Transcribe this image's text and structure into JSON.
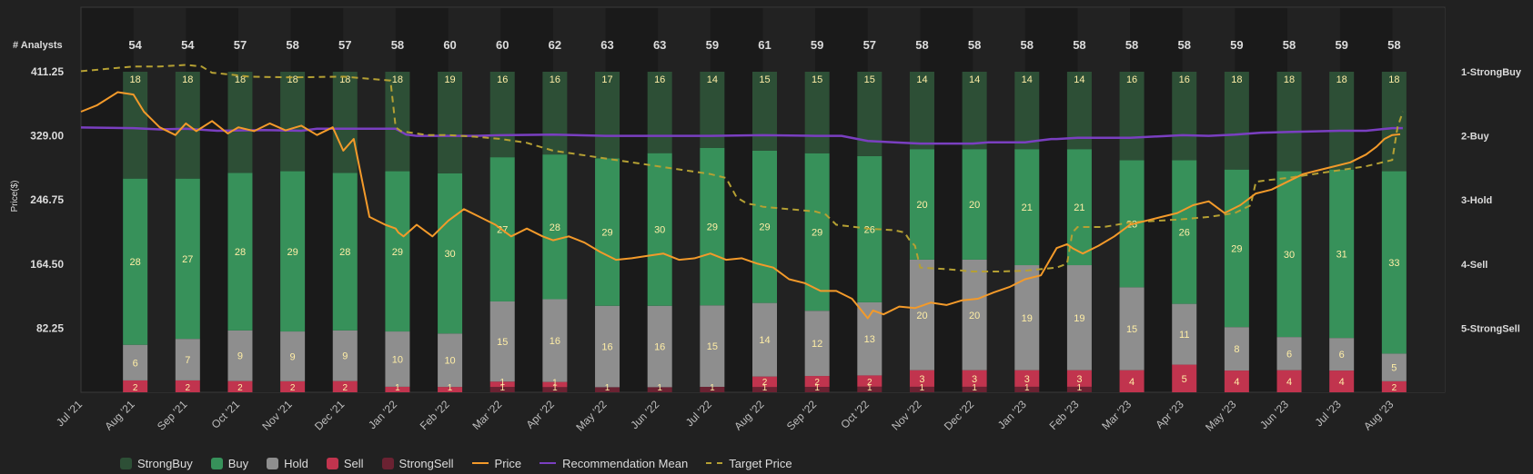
{
  "chart_data": {
    "type": "bar",
    "analysts_label": "# Analysts",
    "price_axis_label": "Price($)",
    "months": [
      "Jul '21",
      "Aug '21",
      "Sep '21",
      "Oct '21",
      "Nov '21",
      "Dec '21",
      "Jan '22",
      "Feb '22",
      "Mar '22",
      "Apr '22",
      "May '22",
      "Jun '22",
      "Jul '22",
      "Aug '22",
      "Sep '22",
      "Oct '22",
      "Nov '22",
      "Dec '22",
      "Jan '23",
      "Feb '23",
      "Mar '23",
      "Apr '23",
      "May '23",
      "Jun '23",
      "Jul '23",
      "Aug '23"
    ],
    "bar_months": [
      "Aug '21",
      "Sep '21",
      "Oct '21",
      "Nov '21",
      "Dec '21",
      "Jan '22",
      "Feb '22",
      "Mar '22",
      "Apr '22",
      "May '22",
      "Jun '22",
      "Jul '22",
      "Aug '22",
      "Sep '22",
      "Oct '22",
      "Nov '22",
      "Dec '22",
      "Jan '23",
      "Feb '23",
      "Mar '23",
      "Apr '23",
      "May '23",
      "Jun '23",
      "Jul '23",
      "Aug '23"
    ],
    "analyst_counts": [
      54,
      54,
      57,
      58,
      57,
      58,
      60,
      60,
      62,
      63,
      63,
      59,
      61,
      59,
      57,
      58,
      58,
      58,
      58,
      58,
      58,
      59,
      58,
      59,
      58
    ],
    "series": [
      {
        "name": "StrongBuy",
        "color": "#2d4f36",
        "values": [
          18,
          18,
          18,
          18,
          18,
          18,
          19,
          16,
          16,
          17,
          16,
          14,
          15,
          15,
          15,
          14,
          14,
          14,
          14,
          16,
          16,
          18,
          18,
          18,
          18
        ]
      },
      {
        "name": "Buy",
        "color": "#37915a",
        "values": [
          28,
          27,
          28,
          29,
          28,
          29,
          30,
          27,
          28,
          29,
          30,
          29,
          29,
          29,
          26,
          20,
          20,
          21,
          21,
          23,
          26,
          29,
          30,
          31,
          33
        ]
      },
      {
        "name": "Hold",
        "color": "#8e8e8e",
        "values": [
          6,
          7,
          9,
          9,
          9,
          10,
          10,
          15,
          16,
          16,
          16,
          15,
          14,
          12,
          13,
          20,
          20,
          19,
          19,
          15,
          11,
          8,
          6,
          6,
          5
        ]
      },
      {
        "name": "Sell",
        "color": "#c1344e",
        "values": [
          2,
          2,
          2,
          2,
          2,
          1,
          1,
          1,
          1,
          0,
          0,
          0,
          2,
          2,
          2,
          3,
          3,
          3,
          3,
          4,
          5,
          4,
          4,
          4,
          2
        ]
      },
      {
        "name": "StrongSell",
        "color": "#6b2232",
        "values": [
          0,
          0,
          0,
          0,
          0,
          0,
          0,
          1,
          1,
          1,
          1,
          1,
          1,
          1,
          1,
          1,
          1,
          1,
          1,
          0,
          0,
          0,
          0,
          0,
          0
        ]
      }
    ],
    "price_ticks": [
      "411.25",
      "329.00",
      "246.75",
      "164.50",
      "82.25"
    ],
    "price_ylim": [
      0,
      411.25
    ],
    "rating_ticks": [
      "1-StrongBuy",
      "2-Buy",
      "3-Hold",
      "4-Sell",
      "5-StrongSell"
    ],
    "price_series": {
      "name": "Price",
      "color": "#f39a2a",
      "x": [
        0,
        0.3,
        0.7,
        1.0,
        1.2,
        1.5,
        1.8,
        2.0,
        2.2,
        2.5,
        2.8,
        3.0,
        3.3,
        3.6,
        3.9,
        4.2,
        4.5,
        4.8,
        5.0,
        5.2,
        5.5,
        5.8,
        6.0,
        6.05,
        6.15,
        6.4,
        6.7,
        7.0,
        7.3,
        7.6,
        7.9,
        8.2,
        8.5,
        8.8,
        9.0,
        9.3,
        9.6,
        9.9,
        10.2,
        10.5,
        10.8,
        11.1,
        11.4,
        11.7,
        12.0,
        12.3,
        12.6,
        12.9,
        13.2,
        13.5,
        13.8,
        14.1,
        14.4,
        14.7,
        15.0,
        15.1,
        15.3,
        15.6,
        15.9,
        16.2,
        16.5,
        16.8,
        17.1,
        17.4,
        17.7,
        18.0,
        18.3,
        18.6,
        18.8,
        18.9,
        19.1,
        19.4,
        19.7,
        20.0,
        20.3,
        20.6,
        20.9,
        21.2,
        21.5,
        21.8,
        22.1,
        22.4,
        22.7,
        23.0,
        23.3,
        23.6,
        23.9,
        24.2,
        24.5,
        24.7,
        24.85,
        25.0,
        25.15
      ],
      "values": [
        360,
        368,
        385,
        382,
        360,
        340,
        330,
        345,
        335,
        348,
        332,
        340,
        335,
        345,
        336,
        342,
        330,
        340,
        310,
        325,
        225,
        215,
        210,
        205,
        200,
        215,
        200,
        220,
        235,
        225,
        215,
        200,
        210,
        200,
        195,
        200,
        192,
        180,
        170,
        172,
        175,
        178,
        170,
        172,
        178,
        170,
        172,
        165,
        160,
        145,
        140,
        130,
        130,
        120,
        95,
        105,
        100,
        110,
        108,
        115,
        112,
        118,
        120,
        128,
        135,
        145,
        150,
        185,
        190,
        185,
        178,
        188,
        200,
        215,
        220,
        225,
        230,
        240,
        245,
        230,
        240,
        255,
        260,
        270,
        280,
        285,
        290,
        295,
        305,
        315,
        325,
        330,
        331
      ]
    },
    "target_series": {
      "name": "Target Price",
      "color": "#b5a033",
      "x": [
        0,
        0.5,
        1.0,
        1.5,
        2.0,
        2.3,
        2.5,
        2.8,
        3.2,
        4.0,
        5.0,
        5.9,
        6.0,
        6.1,
        6.6,
        7.0,
        7.5,
        8.0,
        8.5,
        9.0,
        9.5,
        10.0,
        10.5,
        11.0,
        11.5,
        12.0,
        12.3,
        12.5,
        12.7,
        12.9,
        13.0,
        13.5,
        14.0,
        14.2,
        14.4,
        15.0,
        15.5,
        15.7,
        15.8,
        15.9,
        16.0,
        16.5,
        17.0,
        17.5,
        18.0,
        18.3,
        18.6,
        18.8,
        18.9,
        19.0,
        19.5,
        20.0,
        20.5,
        21.0,
        21.5,
        22.0,
        22.3,
        22.4,
        22.6,
        23.0,
        23.5,
        24.0,
        24.5,
        25.0,
        25.1,
        25.2
      ],
      "values": [
        412,
        415,
        418,
        418,
        420,
        418,
        410,
        408,
        405,
        404,
        405,
        400,
        340,
        335,
        330,
        330,
        328,
        325,
        320,
        310,
        305,
        300,
        295,
        290,
        285,
        280,
        275,
        250,
        242,
        240,
        238,
        235,
        232,
        228,
        215,
        210,
        208,
        205,
        195,
        188,
        160,
        158,
        155,
        155,
        156,
        158,
        160,
        165,
        205,
        212,
        212,
        218,
        220,
        222,
        225,
        230,
        240,
        270,
        272,
        275,
        280,
        285,
        290,
        298,
        340,
        360
      ]
    },
    "recommendation_mean": {
      "name": "Recommendation Mean",
      "color": "#7a3fc1",
      "x": [
        0,
        1.0,
        1.5,
        2.0,
        2.6,
        3.5,
        4.2,
        4.5,
        6.0,
        6.2,
        6.4,
        7.5,
        8.0,
        9.0,
        10.0,
        11.0,
        12.0,
        13.0,
        14.0,
        14.5,
        15.0,
        15.5,
        16.0,
        17.0,
        17.3,
        17.5,
        18.0,
        18.5,
        18.6,
        19.0,
        20.0,
        21.0,
        21.5,
        22.0,
        22.5,
        23.0,
        24.0,
        24.5,
        25.0,
        25.2
      ],
      "values": [
        1.87,
        1.88,
        1.9,
        1.89,
        1.92,
        1.91,
        1.92,
        1.89,
        1.89,
        1.98,
        2.0,
        2.0,
        1.99,
        1.98,
        2.0,
        2.0,
        2.0,
        1.99,
        2.0,
        2.0,
        2.08,
        2.1,
        2.12,
        2.12,
        2.1,
        2.1,
        2.1,
        2.05,
        2.05,
        2.03,
        2.03,
        1.99,
        2.0,
        1.98,
        1.95,
        1.94,
        1.92,
        1.92,
        1.88,
        1.88
      ]
    },
    "legend": [
      "StrongBuy",
      "Buy",
      "Hold",
      "Sell",
      "StrongSell",
      "Price",
      "Recommendation Mean",
      "Target Price"
    ],
    "colors": {
      "background": "#212121",
      "plot_background": "#1a1a1a",
      "grid": "#2c2c2c",
      "label": "#dcdcdc",
      "bar_value": "#ffeea6"
    }
  }
}
